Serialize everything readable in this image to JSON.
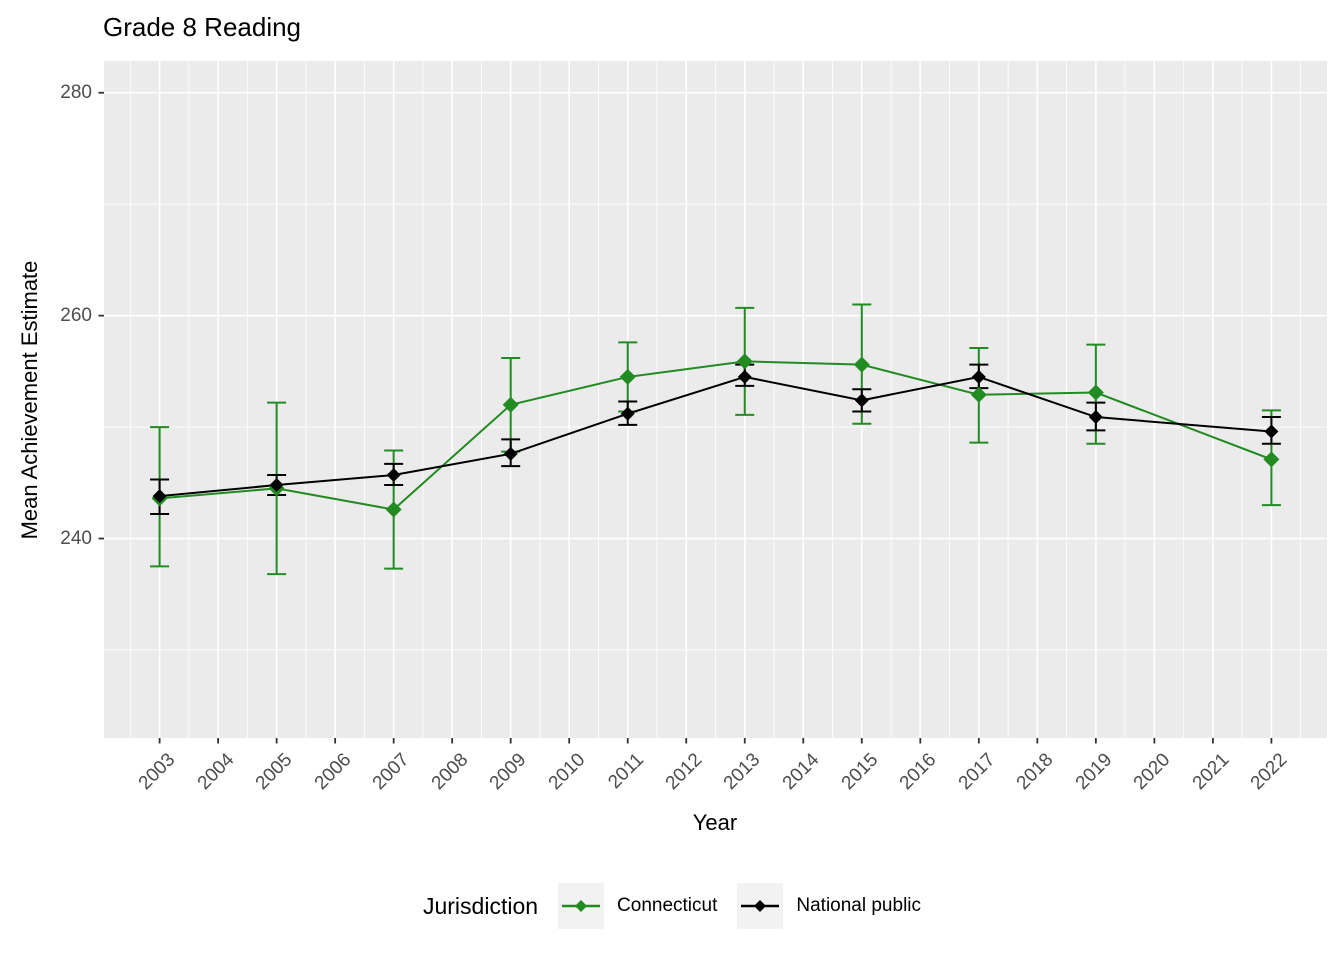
{
  "chart_data": {
    "type": "line",
    "title": "Grade 8 Reading",
    "xlabel": "Year",
    "ylabel": "Mean Achievement Estimate",
    "legend_title": "Jurisdiction",
    "legend_position": "bottom",
    "grid": "on",
    "panel_background": "#ebebeb",
    "grid_color": "#ffffff",
    "axis_text_color": "#4d4d4d",
    "tick_mark_color": "#333333",
    "xlim": [
      2002.05,
      2022.95
    ],
    "ylim": [
      222.1,
      282.85
    ],
    "x_ticks": [
      2003,
      2004,
      2005,
      2006,
      2007,
      2008,
      2009,
      2010,
      2011,
      2012,
      2013,
      2014,
      2015,
      2016,
      2017,
      2018,
      2019,
      2020,
      2021,
      2022
    ],
    "y_ticks": [
      240,
      260,
      280
    ],
    "y_minor_ticks": [
      230,
      250,
      270
    ],
    "x": [
      2003,
      2005,
      2007,
      2009,
      2011,
      2013,
      2015,
      2017,
      2019,
      2022
    ],
    "series": [
      {
        "name": "Connecticut",
        "color": "#228B22",
        "marker": "diamond",
        "values": [
          243.6,
          244.5,
          242.6,
          252.0,
          254.5,
          255.9,
          255.6,
          252.9,
          253.1,
          247.1
        ],
        "ci_low": [
          237.5,
          236.8,
          237.3,
          247.8,
          251.4,
          251.1,
          250.3,
          248.6,
          248.5,
          243.0
        ],
        "ci_high": [
          250.0,
          252.2,
          247.9,
          256.2,
          257.6,
          260.7,
          261.0,
          257.1,
          257.4,
          251.5
        ]
      },
      {
        "name": "National public",
        "color": "#000000",
        "marker": "diamond",
        "values": [
          243.8,
          244.8,
          245.7,
          247.6,
          251.2,
          254.5,
          252.4,
          254.5,
          250.9,
          249.6
        ],
        "ci_low": [
          242.2,
          243.9,
          244.8,
          246.5,
          250.2,
          253.7,
          251.4,
          253.5,
          249.7,
          248.5
        ],
        "ci_high": [
          245.3,
          245.7,
          246.7,
          248.9,
          252.3,
          255.6,
          253.4,
          255.6,
          252.2,
          250.9
        ]
      }
    ]
  }
}
